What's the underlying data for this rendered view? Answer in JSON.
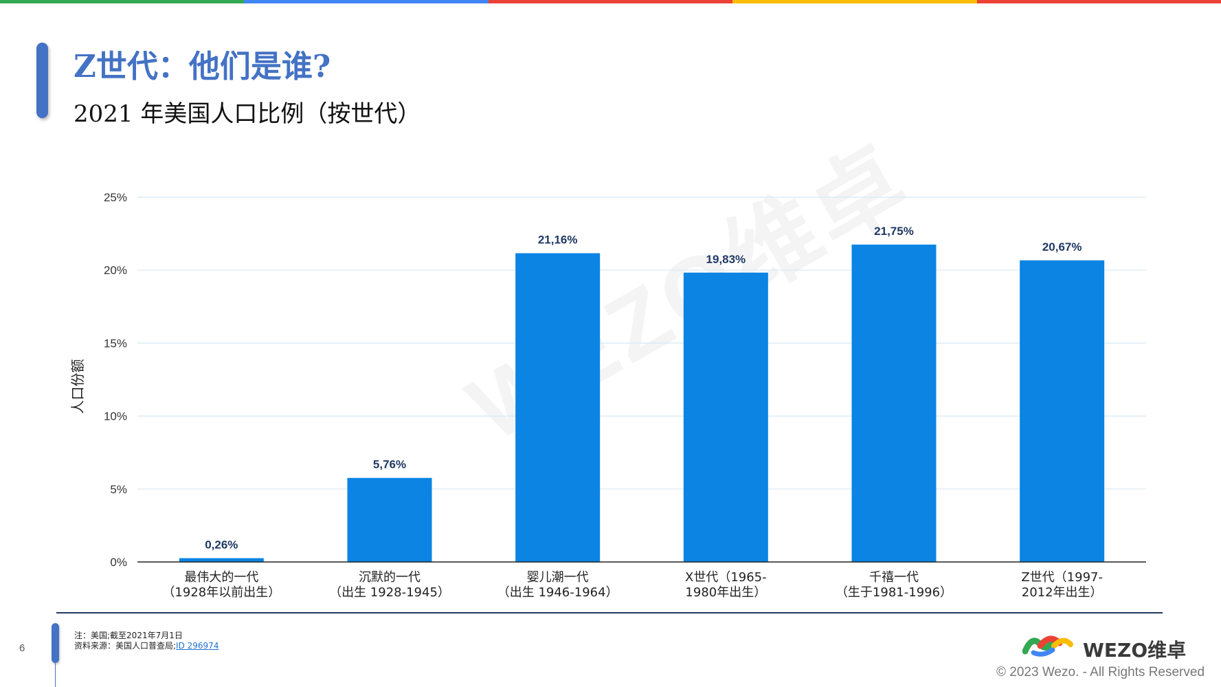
{
  "page": {
    "title": "Z世代：他们是谁?",
    "subtitle": "2021 年美国人口比例（按世代）",
    "page_number": "6",
    "watermark": "WEZO维卓",
    "note_line": "注：美国;截至2021年7月1日",
    "source_prefix": "资料来源：美国人口普查局;",
    "source_link": "ID 296974",
    "logo_text": "WEZO维卓",
    "copyright": "© 2023 Wezo. - All Rights Reserved",
    "top_bar_colors": [
      "#34a853",
      "#4285f4",
      "#ea4335",
      "#fbbc05",
      "#ea4335"
    ],
    "accent_color": "#4472c4"
  },
  "chart_data": {
    "type": "bar",
    "ylabel": "人口份额",
    "ylim": [
      0,
      25
    ],
    "yticks": [
      0,
      5,
      10,
      15,
      20,
      25
    ],
    "ytick_labels": [
      "0%",
      "5%",
      "10%",
      "15%",
      "20%",
      "25%"
    ],
    "grid": true,
    "bar_color": "#0b84e3",
    "categories": [
      [
        "最伟大的一代",
        "（1928年以前出生）"
      ],
      [
        "沉默的一代",
        "（出生 1928-1945）"
      ],
      [
        "婴儿潮一代",
        "（出生 1946-1964）"
      ],
      [
        "X世代（1965-",
        "1980年出生）"
      ],
      [
        "千禧一代",
        "（生于1981-1996）"
      ],
      [
        "Z世代（1997-",
        "2012年出生）"
      ]
    ],
    "values": [
      0.26,
      5.76,
      21.16,
      19.83,
      21.75,
      20.67
    ],
    "value_labels": [
      "0,26%",
      "5,76%",
      "21,16%",
      "19,83%",
      "21,75%",
      "20,67%"
    ]
  }
}
